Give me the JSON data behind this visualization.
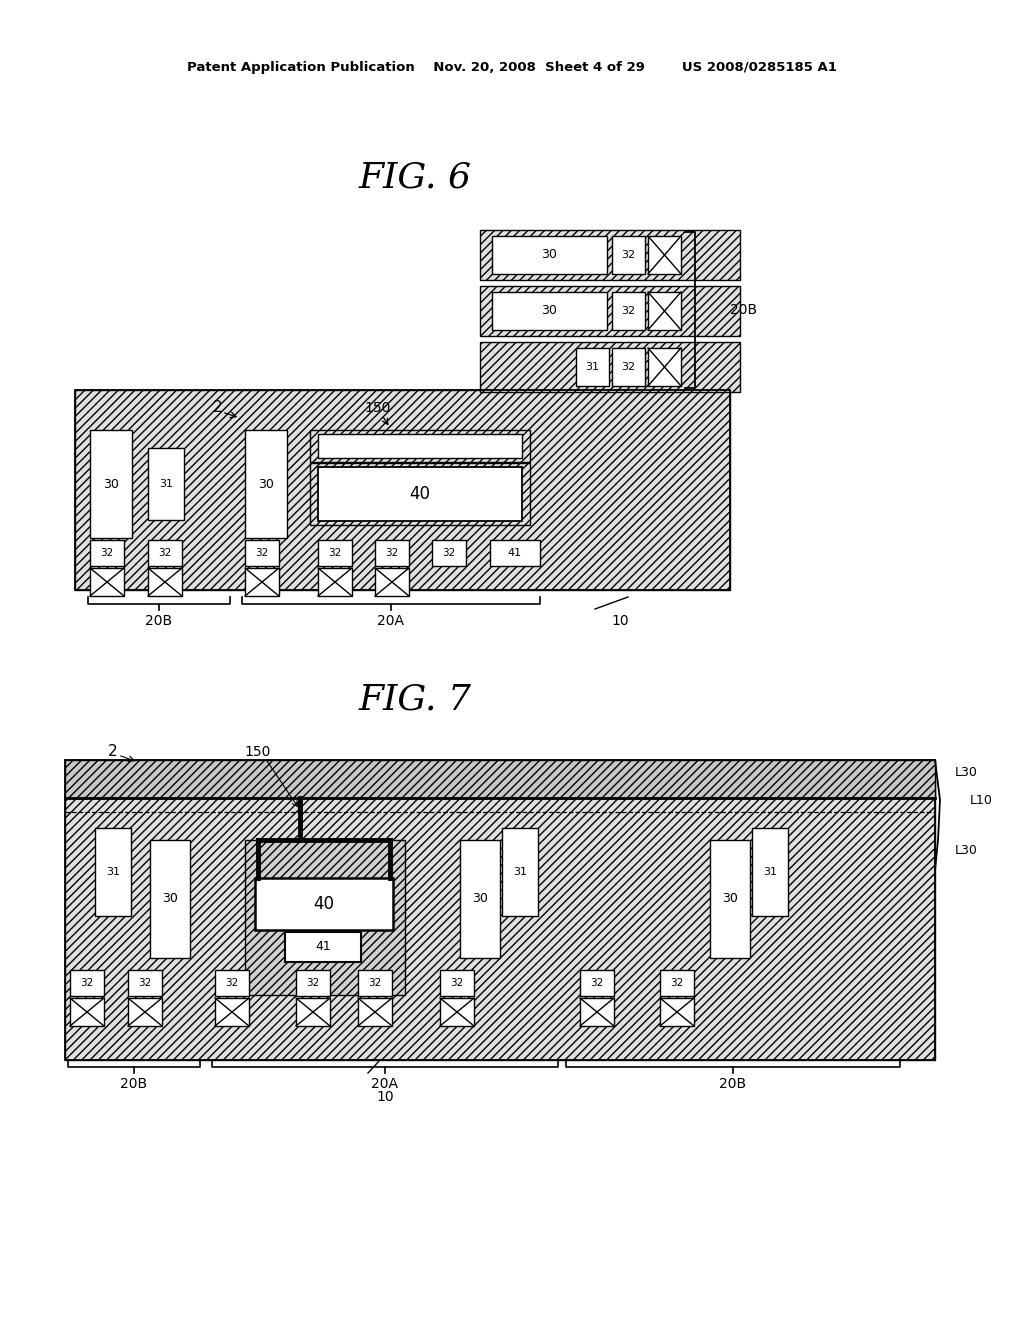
{
  "bg_color": "#ffffff",
  "header": "Patent Application Publication    Nov. 20, 2008  Sheet 4 of 29        US 2008/0285185 A1",
  "fig6_title": "FIG. 6",
  "fig7_title": "FIG. 7"
}
